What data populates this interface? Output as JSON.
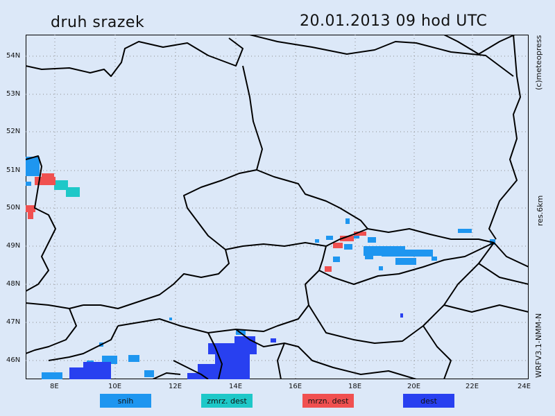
{
  "title": {
    "left": "druh srazek",
    "right": "20.01.2013   09 hod UTC"
  },
  "side_labels": {
    "copyright": "(c)meteopress",
    "resolution": "res.6km",
    "model": "WRFV3.1-NMM-N"
  },
  "latitudes": [
    "54N",
    "53N",
    "52N",
    "51N",
    "50N",
    "49N",
    "48N",
    "47N",
    "46N"
  ],
  "longitudes": [
    "8E",
    "10E",
    "12E",
    "14E",
    "16E",
    "18E",
    "20E",
    "22E",
    "24E"
  ],
  "legend": [
    {
      "label": "snih",
      "color": "#1e96f0"
    },
    {
      "label": "zmrz. dest",
      "color": "#1ec8c8"
    },
    {
      "label": "mrzn. dest",
      "color": "#f05050"
    },
    {
      "label": "dest",
      "color": "#2840f0"
    }
  ],
  "colors": {
    "background": "#dce8f8",
    "border_lines": "#000000",
    "grid": "#8a8a8a"
  }
}
